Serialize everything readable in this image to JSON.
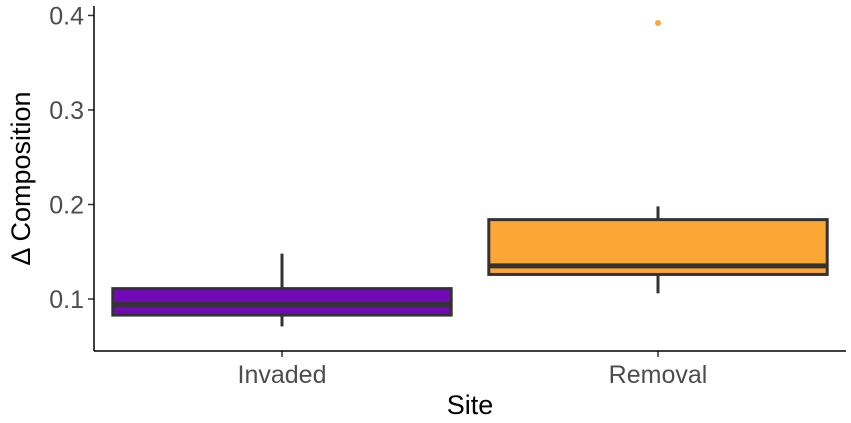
{
  "chart_data": {
    "type": "box",
    "xlabel": "Site",
    "ylabel": "Δ Composition",
    "ylim": [
      0.045,
      0.41
    ],
    "yticks": [
      0.1,
      0.2,
      0.3,
      0.4
    ],
    "ytick_labels": [
      "0.1",
      "0.2",
      "0.3",
      "0.4"
    ],
    "categories": [
      "Invaded",
      "Removal"
    ],
    "boxes": [
      {
        "category": "Invaded",
        "whisker_low": 0.071,
        "q1": 0.083,
        "median": 0.094,
        "q3": 0.111,
        "whisker_high": 0.148,
        "outliers": [],
        "color": "#7209b7"
      },
      {
        "category": "Removal",
        "whisker_low": 0.106,
        "q1": 0.126,
        "median": 0.135,
        "q3": 0.184,
        "whisker_high": 0.198,
        "outliers": [
          0.392
        ],
        "color": "#fca636"
      }
    ],
    "grid": false,
    "legend": "none",
    "line_color": "#333333"
  }
}
